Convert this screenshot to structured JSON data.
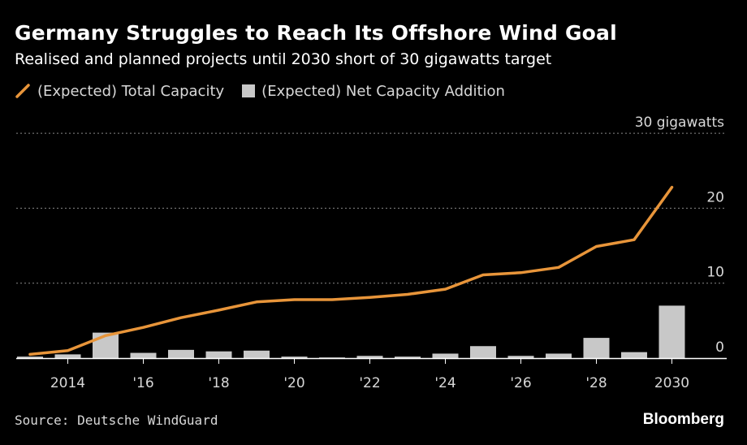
{
  "title": "Germany Struggles to Reach Its Offshore Wind Goal",
  "subtitle": "Realised and planned projects until 2030 short of 30 gigawatts target",
  "legend": {
    "line_label": "(Expected) Total Capacity",
    "bar_label": "(Expected) Net Capacity Addition"
  },
  "source": "Source: Deutsche WindGuard",
  "brand": "Bloomberg",
  "colors": {
    "background": "#000000",
    "line": "#e8953a",
    "bars": "#c8c8c8",
    "grid": "#888888",
    "text": "#d8d8d8"
  },
  "chart_data": {
    "type": "bar+line",
    "years": [
      2013,
      2014,
      2015,
      2016,
      2017,
      2018,
      2019,
      2020,
      2021,
      2022,
      2023,
      2024,
      2025,
      2026,
      2027,
      2028,
      2029,
      2030
    ],
    "x_tick_labels": [
      {
        "year": 2014,
        "label": "2014"
      },
      {
        "year": 2016,
        "label": "'16"
      },
      {
        "year": 2018,
        "label": "'18"
      },
      {
        "year": 2020,
        "label": "'20"
      },
      {
        "year": 2022,
        "label": "'22"
      },
      {
        "year": 2024,
        "label": "'24"
      },
      {
        "year": 2026,
        "label": "'26"
      },
      {
        "year": 2028,
        "label": "'28"
      },
      {
        "year": 2030,
        "label": "2030"
      }
    ],
    "y_ticks": [
      {
        "value": 0,
        "label": "0"
      },
      {
        "value": 10,
        "label": "10"
      },
      {
        "value": 20,
        "label": "20"
      },
      {
        "value": 30,
        "label": "30 gigawatts"
      }
    ],
    "ylim": [
      0,
      30
    ],
    "series": [
      {
        "name": "(Expected) Total Capacity",
        "type": "line",
        "values": [
          0.5,
          1.0,
          3.0,
          4.1,
          5.4,
          6.4,
          7.5,
          7.8,
          7.8,
          8.1,
          8.5,
          9.2,
          11.1,
          11.4,
          12.1,
          14.9,
          15.8,
          22.8
        ]
      },
      {
        "name": "(Expected) Net Capacity Addition",
        "type": "bar",
        "values": [
          0.2,
          0.5,
          3.4,
          0.7,
          1.1,
          0.9,
          1.0,
          0.2,
          0.0,
          0.3,
          0.2,
          0.6,
          1.6,
          0.3,
          0.6,
          2.7,
          0.8,
          7.0
        ]
      }
    ],
    "grid": true,
    "y_axis_side": "right"
  }
}
